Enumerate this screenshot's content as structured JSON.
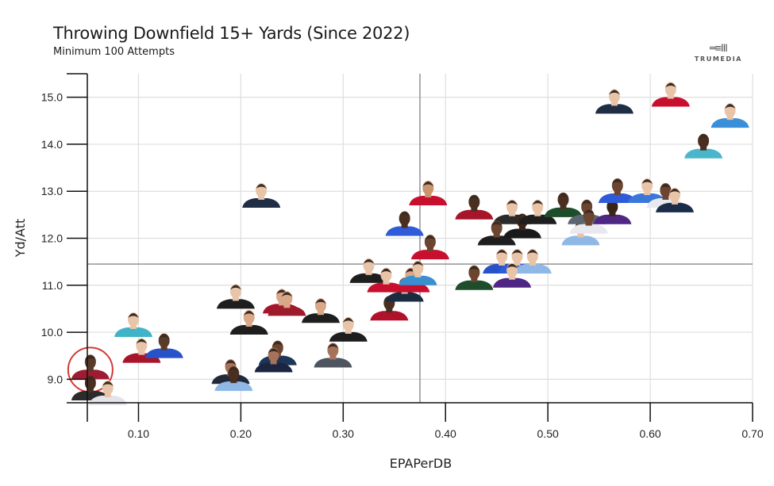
{
  "header": {
    "title": "Throwing Downfield 15+ Yards (Since 2022)",
    "subtitle": "Minimum 100 Attempts",
    "logo_text": "TRUMEDIA",
    "logo_mark": "═≡ⅠⅡ"
  },
  "colors": {
    "gridline": "#dedede",
    "axis": "#111111",
    "reference_line": "#8a8a8a",
    "highlight_circle": "#d23a35"
  },
  "chart_data": {
    "type": "scatter",
    "title": "Throwing Downfield 15+ Yards (Since 2022)",
    "subtitle": "Minimum 100 Attempts",
    "xlabel": "EPAPerDB",
    "ylabel": "Yd/Att",
    "xlim": [
      0.05,
      0.7
    ],
    "ylim": [
      8.5,
      15.5
    ],
    "xticks": [
      "0.10",
      "0.20",
      "0.30",
      "0.40",
      "0.50",
      "0.60",
      "0.70"
    ],
    "xtick_values": [
      0.1,
      0.2,
      0.3,
      0.4,
      0.5,
      0.6,
      0.7
    ],
    "yticks": [
      "9.0",
      "10.0",
      "11.0",
      "12.0",
      "13.0",
      "14.0",
      "15.0"
    ],
    "ytick_values": [
      9.0,
      10.0,
      11.0,
      12.0,
      13.0,
      14.0,
      15.0
    ],
    "grid": true,
    "reference_lines": {
      "x": 0.375,
      "y": 11.45
    },
    "marker": "player-headshot",
    "points": [
      {
        "x": 0.053,
        "y": 9.0,
        "jersey": "#9e1b32",
        "skin": "#5a3a28",
        "highlighted": true
      },
      {
        "x": 0.053,
        "y": 8.55,
        "jersey": "#2b2b2b",
        "skin": "#4a2f20"
      },
      {
        "x": 0.07,
        "y": 8.45,
        "jersey": "#e3e3ea",
        "skin": "#e8c4a8"
      },
      {
        "x": 0.095,
        "y": 9.9,
        "jersey": "#3fb4c8",
        "skin": "#e8c4a8"
      },
      {
        "x": 0.103,
        "y": 9.35,
        "jersey": "#a8152a",
        "skin": "#e8c4a8"
      },
      {
        "x": 0.125,
        "y": 9.45,
        "jersey": "#2752c9",
        "skin": "#5a3a28"
      },
      {
        "x": 0.195,
        "y": 10.5,
        "jersey": "#1e1e1e",
        "skin": "#e8c4a8"
      },
      {
        "x": 0.208,
        "y": 9.95,
        "jersey": "#1e1e1e",
        "skin": "#d9a888"
      },
      {
        "x": 0.19,
        "y": 8.9,
        "jersey": "#222a3a",
        "skin": "#a6735a"
      },
      {
        "x": 0.193,
        "y": 8.75,
        "jersey": "#8fb8e6",
        "skin": "#4a2f20"
      },
      {
        "x": 0.22,
        "y": 12.65,
        "jersey": "#1f2d45",
        "skin": "#e8c4a8"
      },
      {
        "x": 0.24,
        "y": 10.4,
        "jersey": "#a8152a",
        "skin": "#d9a888"
      },
      {
        "x": 0.245,
        "y": 10.35,
        "jersey": "#9c1c2c",
        "skin": "#d9a888"
      },
      {
        "x": 0.236,
        "y": 9.3,
        "jersey": "#1d3557",
        "skin": "#6b4530"
      },
      {
        "x": 0.232,
        "y": 9.15,
        "jersey": "#1b2440",
        "skin": "#a6735a"
      },
      {
        "x": 0.278,
        "y": 10.2,
        "jersey": "#1e1e1e",
        "skin": "#d9a888"
      },
      {
        "x": 0.305,
        "y": 9.8,
        "jersey": "#1e1e1e",
        "skin": "#e8c4a8"
      },
      {
        "x": 0.29,
        "y": 9.25,
        "jersey": "#4e5560",
        "skin": "#a6735a"
      },
      {
        "x": 0.325,
        "y": 11.05,
        "jersey": "#1e1e1e",
        "skin": "#e8c4a8"
      },
      {
        "x": 0.342,
        "y": 10.85,
        "jersey": "#c8102e",
        "skin": "#e8c4a8"
      },
      {
        "x": 0.345,
        "y": 10.25,
        "jersey": "#b0122a",
        "skin": "#4a2f20"
      },
      {
        "x": 0.36,
        "y": 10.65,
        "jersey": "#1b2c40",
        "skin": "#e8c4a8"
      },
      {
        "x": 0.366,
        "y": 10.85,
        "jersey": "#c8102e",
        "skin": "#d9a888"
      },
      {
        "x": 0.373,
        "y": 11.0,
        "jersey": "#3a8fd0",
        "skin": "#e8c4a8"
      },
      {
        "x": 0.383,
        "y": 12.7,
        "jersey": "#c8102e",
        "skin": "#c9956e"
      },
      {
        "x": 0.36,
        "y": 12.05,
        "jersey": "#2f5bd9",
        "skin": "#4a2f20"
      },
      {
        "x": 0.385,
        "y": 11.55,
        "jersey": "#c8102e",
        "skin": "#6b4530"
      },
      {
        "x": 0.428,
        "y": 12.4,
        "jersey": "#a8152a",
        "skin": "#4a2f20"
      },
      {
        "x": 0.428,
        "y": 10.9,
        "jersey": "#1e4d2b",
        "skin": "#6b4530"
      },
      {
        "x": 0.465,
        "y": 12.3,
        "jersey": "#2b2b2b",
        "skin": "#e8c4a8"
      },
      {
        "x": 0.45,
        "y": 11.85,
        "jersey": "#1e1e1e",
        "skin": "#6b4530"
      },
      {
        "x": 0.475,
        "y": 12.0,
        "jersey": "#1a1a1a",
        "skin": "#3a2418"
      },
      {
        "x": 0.49,
        "y": 12.3,
        "jersey": "#1e1e1e",
        "skin": "#e8c4a8"
      },
      {
        "x": 0.455,
        "y": 11.25,
        "jersey": "#2752c9",
        "skin": "#e8c4a8"
      },
      {
        "x": 0.47,
        "y": 11.25,
        "jersey": "#2f5bd9",
        "skin": "#e8c4a8"
      },
      {
        "x": 0.485,
        "y": 11.25,
        "jersey": "#8fb8e6",
        "skin": "#e8c4a8"
      },
      {
        "x": 0.465,
        "y": 10.95,
        "jersey": "#4f2683",
        "skin": "#e8c4a8"
      },
      {
        "x": 0.515,
        "y": 12.45,
        "jersey": "#1e4d2b",
        "skin": "#4a2f20"
      },
      {
        "x": 0.532,
        "y": 11.85,
        "jersey": "#8fb8e6",
        "skin": "#e8c4a8"
      },
      {
        "x": 0.538,
        "y": 12.3,
        "jersey": "#5c6670",
        "skin": "#6b4530"
      },
      {
        "x": 0.54,
        "y": 12.1,
        "jersey": "#e8e8ee",
        "skin": "#6b4530"
      },
      {
        "x": 0.563,
        "y": 12.3,
        "jersey": "#4f2683",
        "skin": "#3a2418"
      },
      {
        "x": 0.568,
        "y": 12.75,
        "jersey": "#2f5bd9",
        "skin": "#6b4530"
      },
      {
        "x": 0.597,
        "y": 12.75,
        "jersey": "#3a77d9",
        "skin": "#e8c4a8"
      },
      {
        "x": 0.615,
        "y": 12.65,
        "jersey": "#e8e8ee",
        "skin": "#6b4530"
      },
      {
        "x": 0.624,
        "y": 12.55,
        "jersey": "#1b2c4a",
        "skin": "#e8c4a8"
      },
      {
        "x": 0.565,
        "y": 14.65,
        "jersey": "#1f2d45",
        "skin": "#e8c4a8"
      },
      {
        "x": 0.62,
        "y": 14.8,
        "jersey": "#c8102e",
        "skin": "#e8c4a8"
      },
      {
        "x": 0.678,
        "y": 14.35,
        "jersey": "#3a8fd9",
        "skin": "#e8c4a8"
      },
      {
        "x": 0.652,
        "y": 13.7,
        "jersey": "#4ab6cc",
        "skin": "#4a2f20"
      }
    ]
  }
}
